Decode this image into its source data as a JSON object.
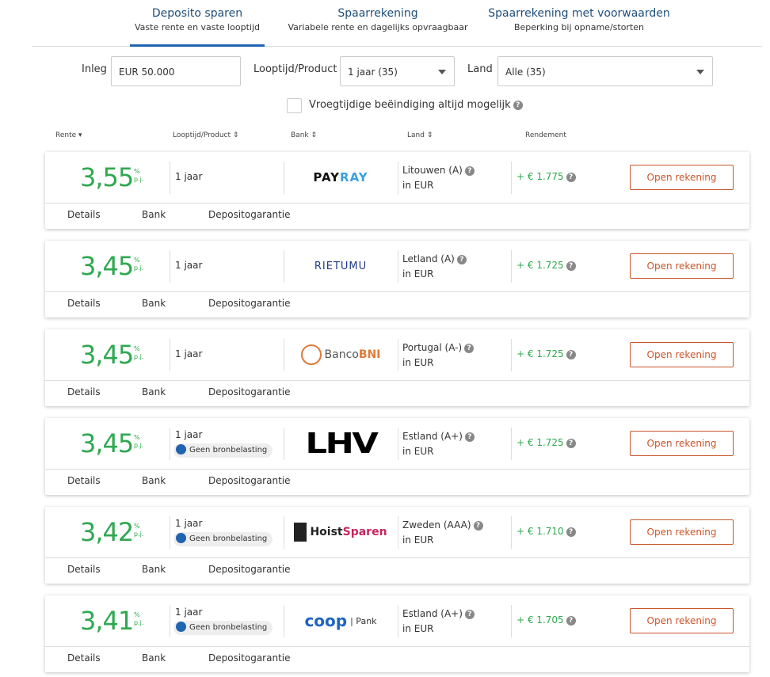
{
  "tabs": [
    {
      "title": "Deposito sparen",
      "subtitle": "Vaste rente en vaste looptijd",
      "active": true
    },
    {
      "title": "Spaarrekening",
      "subtitle": "Variabele rente en dagelijks opvraagbaar"
    },
    {
      "title": "Spaarrekening met voorwaarden",
      "subtitle": "Beperking bij opname/storten"
    }
  ],
  "filters": {
    "inleg_label": "Inleg",
    "inleg_value": "EUR 50.000",
    "looptijd_label": "Looptijd/Product",
    "looptijd_value": "1 jaar (35)",
    "land_label": "Land",
    "land_value": "Alle (35)",
    "checkbox_label": "Vroegtijdige beëindiging altijd mogelijk"
  },
  "columns": {
    "rente": "Rente",
    "looptijd": "Looptijd/Product",
    "bank": "Bank",
    "land": "Land",
    "rendement": "Rendement"
  },
  "unit": {
    "pct": "%",
    "pj": "p.j."
  },
  "links": {
    "details": "Details",
    "bank": "Bank",
    "garantie": "Depositogarantie"
  },
  "button_label": "Open rekening",
  "badge_label": "Geen bronbelasting",
  "offers": [
    {
      "rate": "3,55",
      "term": "1 jaar",
      "bank": "PAYRAY",
      "country": "Litouwen (A)",
      "currency": "in EUR",
      "yield": "+ € 1.775",
      "badge": false
    },
    {
      "rate": "3,45",
      "term": "1 jaar",
      "bank": "RIETUMU",
      "country": "Letland (A)",
      "currency": "in EUR",
      "yield": "+ € 1.725",
      "badge": false
    },
    {
      "rate": "3,45",
      "term": "1 jaar",
      "bank": "BancoBNI",
      "country": "Portugal (A-)",
      "currency": "in EUR",
      "yield": "+ € 1.725",
      "badge": false
    },
    {
      "rate": "3,45",
      "term": "1 jaar",
      "bank": "LHV",
      "country": "Estland (A+)",
      "currency": "in EUR",
      "yield": "+ € 1.725",
      "badge": true
    },
    {
      "rate": "3,42",
      "term": "1 jaar",
      "bank": "HoistSparen",
      "country": "Zweden (AAA)",
      "currency": "in EUR",
      "yield": "+ € 1.710",
      "badge": true
    },
    {
      "rate": "3,41",
      "term": "1 jaar",
      "bank": "coop | Pank",
      "country": "Estland (A+)",
      "currency": "in EUR",
      "yield": "+ € 1.705",
      "badge": true
    }
  ]
}
